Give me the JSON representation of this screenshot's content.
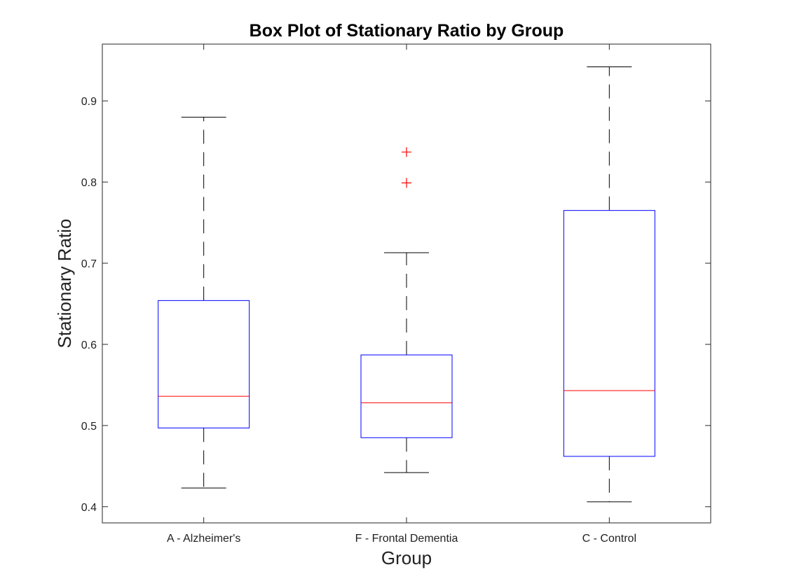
{
  "chart_data": {
    "type": "box",
    "title": "Box Plot of Stationary Ratio by Group",
    "xlabel": "Group",
    "ylabel": "Stationary Ratio",
    "ylim": [
      0.38,
      0.97
    ],
    "yticks": [
      "0.4",
      "0.5",
      "0.6",
      "0.7",
      "0.8",
      "0.9"
    ],
    "grid": false,
    "categories": [
      "A - Alzheimer's",
      "F - Frontal Dementia",
      "C - Control"
    ],
    "boxes": [
      {
        "category": "A - Alzheimer's",
        "whisker_low": 0.423,
        "q1": 0.497,
        "median": 0.536,
        "q3": 0.654,
        "whisker_high": 0.88,
        "outliers": []
      },
      {
        "category": "F - Frontal Dementia",
        "whisker_low": 0.442,
        "q1": 0.485,
        "median": 0.528,
        "q3": 0.587,
        "whisker_high": 0.713,
        "outliers": [
          0.799,
          0.837
        ]
      },
      {
        "category": "C - Control",
        "whisker_low": 0.406,
        "q1": 0.462,
        "median": 0.543,
        "q3": 0.765,
        "whisker_high": 0.942,
        "outliers": []
      }
    ],
    "colors": {
      "box": "#0000ff",
      "median": "#ff0000",
      "whisker": "#000000",
      "outlier": "#ff0000",
      "axes": "#262626"
    }
  }
}
